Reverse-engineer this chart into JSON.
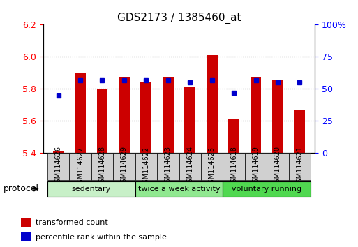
{
  "title": "GDS2173 / 1385460_at",
  "samples": [
    "GSM114626",
    "GSM114627",
    "GSM114628",
    "GSM114629",
    "GSM114622",
    "GSM114623",
    "GSM114624",
    "GSM114625",
    "GSM114618",
    "GSM114619",
    "GSM114620",
    "GSM114621"
  ],
  "red_values": [
    5.41,
    5.9,
    5.8,
    5.87,
    5.84,
    5.87,
    5.81,
    6.01,
    5.61,
    5.87,
    5.86,
    5.67
  ],
  "blue_values": [
    45,
    57,
    57,
    57,
    57,
    57,
    55,
    57,
    47,
    57,
    55,
    55
  ],
  "ylim_left": [
    5.4,
    6.2
  ],
  "ylim_right": [
    0,
    100
  ],
  "yticks_left": [
    5.4,
    5.6,
    5.8,
    6.0,
    6.2
  ],
  "yticks_right": [
    0,
    25,
    50,
    75,
    100
  ],
  "ytick_labels_right": [
    "0",
    "25",
    "50",
    "75",
    "100%"
  ],
  "groups": [
    {
      "label": "sedentary",
      "start": 0,
      "end": 4,
      "color": "#c8f0c8"
    },
    {
      "label": "twice a week activity",
      "start": 4,
      "end": 8,
      "color": "#90e890"
    },
    {
      "label": "voluntary running",
      "start": 8,
      "end": 12,
      "color": "#50d850"
    }
  ],
  "bar_color": "#cc0000",
  "dot_color": "#0000cc",
  "bar_bottom": 5.4,
  "grid_color": "#000000",
  "legend_red_label": "transformed count",
  "legend_blue_label": "percentile rank within the sample",
  "protocol_label": "protocol"
}
